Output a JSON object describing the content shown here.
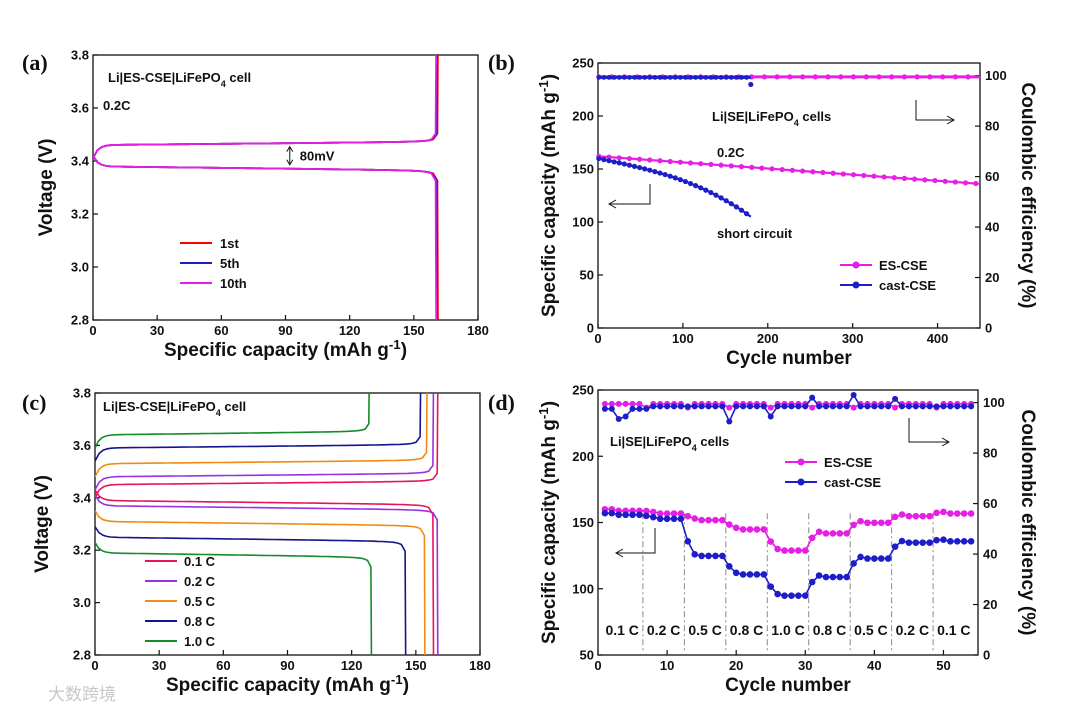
{
  "watermark": "大数跨境",
  "chart_data": [
    {
      "panel": "(a)",
      "type": "line",
      "title": "Li|ES-CSE|LiFePO4 cell",
      "rate_note": "0.2C",
      "xlabel": "Specific capacity (mAh g-1)",
      "ylabel": "Voltage (V)",
      "xlim": [
        0,
        180
      ],
      "ylim": [
        2.8,
        3.8
      ],
      "xticks": [
        "0",
        "30",
        "60",
        "90",
        "120",
        "150",
        "180"
      ],
      "yticks": [
        "2.8",
        "3.0",
        "3.2",
        "3.4",
        "3.6",
        "3.8"
      ],
      "annotation": "80mV",
      "series": [
        {
          "name": "1st",
          "color": "#ff0000",
          "capacity": 161,
          "charge_plateau": 3.46,
          "discharge_plateau": 3.38
        },
        {
          "name": "5th",
          "color": "#1e1ec8",
          "capacity": 161,
          "charge_plateau": 3.46,
          "discharge_plateau": 3.38
        },
        {
          "name": "10th",
          "color": "#e61ee6",
          "capacity": 161,
          "charge_plateau": 3.46,
          "discharge_plateau": 3.38
        }
      ]
    },
    {
      "panel": "(b)",
      "type": "scatter",
      "title": "Li|SE|LiFePO4 cells",
      "rate_note": "0.2C",
      "annotation": "short circuit",
      "xlabel": "Cycle number",
      "ylabel": "Specific capacity (mAh g-1)",
      "y2label": "Coulombic efficiency (%)",
      "xlim": [
        0,
        450
      ],
      "ylim": [
        0,
        250
      ],
      "y2lim": [
        0,
        105
      ],
      "xticks": [
        "0",
        "100",
        "200",
        "300",
        "400"
      ],
      "yticks": [
        "0",
        "50",
        "100",
        "150",
        "200",
        "250"
      ],
      "y2ticks": [
        "0",
        "20",
        "40",
        "60",
        "80",
        "100"
      ],
      "series": [
        {
          "name": "ES-CSE",
          "color": "#e61ee6",
          "cycles": 450,
          "capacity_start": 162,
          "capacity_end": 136,
          "ce": 99.5
        },
        {
          "name": "cast-CSE",
          "color": "#1e1ec8",
          "cycles": 180,
          "capacity_start": 160,
          "capacity_end": 105,
          "ce": 99.3
        }
      ]
    },
    {
      "panel": "(c)",
      "type": "line",
      "title": "Li|ES-CSE|LiFePO4 cell",
      "xlabel": "Specific capacity (mAh g-1)",
      "ylabel": "Voltage (V)",
      "xlim": [
        0,
        180
      ],
      "ylim": [
        2.8,
        3.8
      ],
      "xticks": [
        "0",
        "30",
        "60",
        "90",
        "120",
        "150",
        "180"
      ],
      "yticks": [
        "2.8",
        "3.0",
        "3.2",
        "3.4",
        "3.6",
        "3.8"
      ],
      "series": [
        {
          "name": "0.1 C",
          "color": "#e6145a",
          "charge_capacity": 160,
          "discharge_capacity": 158,
          "charge_plateau": 3.45,
          "discharge_plateau": 3.39
        },
        {
          "name": "0.2 C",
          "color": "#9b30e0",
          "charge_capacity": 158,
          "discharge_capacity": 160,
          "charge_plateau": 3.48,
          "discharge_plateau": 3.37
        },
        {
          "name": "0.5 C",
          "color": "#f08c14",
          "charge_capacity": 155,
          "discharge_capacity": 154,
          "charge_plateau": 3.53,
          "discharge_plateau": 3.31
        },
        {
          "name": "0.8 C",
          "color": "#14148c",
          "charge_capacity": 152,
          "discharge_capacity": 145,
          "charge_plateau": 3.59,
          "discharge_plateau": 3.25
        },
        {
          "name": "1.0 C",
          "color": "#148c28",
          "charge_capacity": 128,
          "discharge_capacity": 129,
          "charge_plateau": 3.64,
          "discharge_plateau": 3.19
        }
      ]
    },
    {
      "panel": "(d)",
      "type": "scatter",
      "title": "Li|SE|LiFePO4 cells",
      "xlabel": "Cycle number",
      "ylabel": "Specific capacity (mAh g-1)",
      "y2label": "Coulombic efficiency (%)",
      "xlim": [
        0,
        55
      ],
      "ylim": [
        50,
        250
      ],
      "y2lim": [
        0,
        105
      ],
      "xticks": [
        "0",
        "10",
        "20",
        "30",
        "40",
        "50"
      ],
      "yticks": [
        "50",
        "100",
        "150",
        "200",
        "250"
      ],
      "y2ticks": [
        "0",
        "20",
        "40",
        "60",
        "80",
        "100"
      ],
      "rate_labels": [
        "0.1 C",
        "0.2 C",
        "0.5 C",
        "0.8 C",
        "1.0 C",
        "0.8 C",
        "0.5 C",
        "0.2 C",
        "0.1 C"
      ],
      "series": [
        {
          "name": "ES-CSE",
          "color": "#e61ee6",
          "capacity_by_step": [
            160,
            158,
            153,
            146,
            130,
            143,
            151,
            156,
            158
          ],
          "ce": 99.5
        },
        {
          "name": "cast-CSE",
          "color": "#1e1ec8",
          "capacity_by_step": [
            157,
            154,
            126,
            112,
            96,
            110,
            124,
            136,
            137
          ],
          "ce": 98.5
        }
      ]
    }
  ]
}
